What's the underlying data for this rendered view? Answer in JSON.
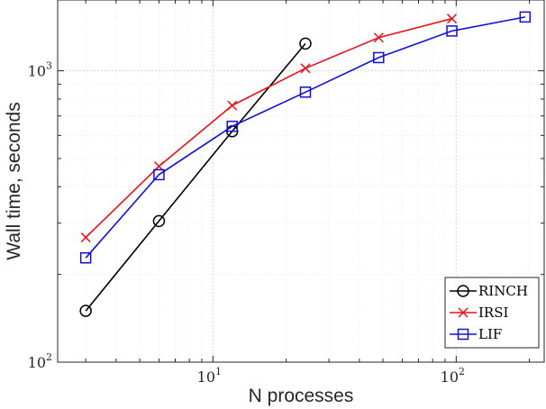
{
  "chart_data": {
    "type": "line",
    "title": "",
    "xlabel": "N processes",
    "ylabel": "Wall time, seconds",
    "x_scale": "log",
    "y_scale": "log",
    "xlim": [
      2.3,
      230
    ],
    "ylim": [
      100,
      1750
    ],
    "x_ticks": [
      {
        "base": "10",
        "exp": "1"
      },
      {
        "base": "10",
        "exp": "2"
      }
    ],
    "y_ticks": [
      {
        "base": "10",
        "exp": "2"
      },
      {
        "base": "10",
        "exp": "3"
      }
    ],
    "x_tick_values": [
      10,
      100
    ],
    "y_tick_values": [
      100,
      1000
    ],
    "grid": "major and minor",
    "legend_position": "bottom-right",
    "series": [
      {
        "name": "RINCH",
        "color": "#000000",
        "marker": "circle",
        "x": [
          3,
          6,
          12,
          24
        ],
        "y": [
          150,
          305,
          620,
          1240
        ]
      },
      {
        "name": "IRSI",
        "color": "#e8121a",
        "marker": "cross",
        "x": [
          3,
          6,
          12,
          24,
          48,
          96
        ],
        "y": [
          268,
          470,
          760,
          1020,
          1300,
          1510
        ]
      },
      {
        "name": "LIF",
        "color": "#1010d8",
        "marker": "square",
        "x": [
          3,
          6,
          12,
          24,
          48,
          96,
          192
        ],
        "y": [
          228,
          440,
          645,
          845,
          1110,
          1370,
          1530
        ]
      }
    ]
  }
}
